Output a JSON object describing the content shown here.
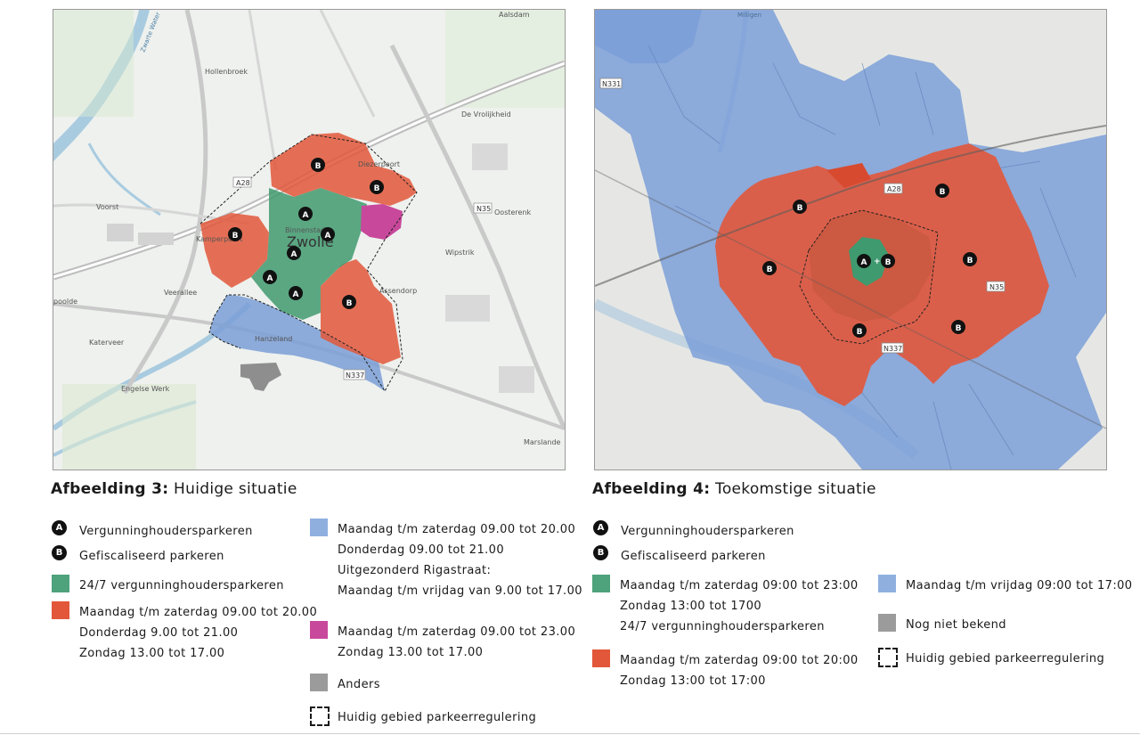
{
  "left_map": {
    "caption_bold": "Afbeelding 3:",
    "caption_text": "Huidige situatie",
    "place_labels": {
      "hollenbroek": "Hollenbroek",
      "diezerpoort": "Diezerpoort",
      "vrolijkheid": "De Vrolijkheid",
      "voorst": "Voorst",
      "binnenstad": "Binnenstad",
      "zwolle": "Zwolle",
      "kamperpoort": "Kamperpoort",
      "oosterenk": "Oosterenk",
      "wipstrik": "Wipstrik",
      "veerallee": "Veerallee",
      "assendorp": "Assendorp",
      "poolde": "poolde",
      "katerveer": "Katerveer",
      "hanzeland": "Hanzeland",
      "engelse_werk": "Engelse Werk",
      "marslande": "Marslande",
      "a28": "A28",
      "n35": "N35",
      "n337": "N337",
      "zwarte_water": "Zwarte Water",
      "aalsdam": "Aalsdam"
    },
    "legend": {
      "a_label": "Vergunninghoudersparkeren",
      "b_label": "Gefiscaliseerd parkeren",
      "green_label": "24/7 vergunninghoudersparkeren",
      "red_lines": [
        "Maandag t/m zaterdag 09.00 tot 20.00",
        "Donderdag 9.00 tot 21.00",
        "Zondag 13.00 tot 17.00"
      ],
      "blue_lines": [
        "Maandag t/m zaterdag 09.00 tot 20.00",
        "Donderdag 09.00 tot 21.00",
        "Uitgezonderd Rigastraat:",
        "Maandag t/m vrijdag van 9.00 tot 17.00"
      ],
      "magenta_lines": [
        "Maandag t/m zaterdag 09.00 tot 23.00",
        "Zondag 13.00 tot 17.00"
      ],
      "grey_label": "Anders",
      "dashed_label": "Huidig gebied parkeerregulering"
    }
  },
  "right_map": {
    "caption_bold": "Afbeelding 4:",
    "caption_text": "Toekomstige situatie",
    "place_labels": {
      "n331": "N331",
      "a28": "A28",
      "n35": "N35",
      "n337": "N337",
      "milligen": "Milligen"
    },
    "center_plus": "+",
    "legend": {
      "a_label": "Vergunninghoudersparkeren",
      "b_label": "Gefiscaliseerd parkeren",
      "green_lines": [
        "Maandag t/m zaterdag 09:00 tot 23:00",
        "Zondag 13:00 tot 1700",
        "24/7 vergunninghoudersparkeren"
      ],
      "red_lines": [
        "Maandag t/m zaterdag 09:00 tot 20:00",
        "Zondag 13:00 tot 17:00"
      ],
      "blue_label": "Maandag t/m vrijdag 09:00 tot 17:00",
      "grey_label": "Nog niet bekend",
      "dashed_label": "Huidig gebied parkeerregulering"
    }
  },
  "markers": {
    "a": "A",
    "b": "B"
  },
  "colors": {
    "green": "#4ea27c",
    "red": "#e2573a",
    "blue": "#8fb0df",
    "magenta": "#c8489b",
    "grey": "#9b9b9b",
    "marker": "#111111"
  },
  "icons": {
    "marker_a": "circle-letter-a-icon",
    "marker_b": "circle-letter-b-icon",
    "dashed_box": "dashed-square-icon"
  }
}
